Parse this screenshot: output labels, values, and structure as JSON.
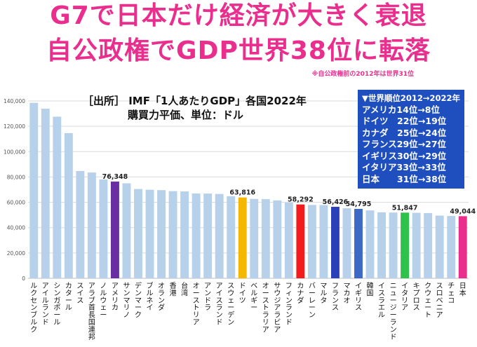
{
  "headline": {
    "line1": "G7で日本だけ経済が大きく衰退",
    "line2": "自公政権でGDP世界38位に転落",
    "footnote": "※自公政権前の2012年は世界31位"
  },
  "source": {
    "line1": "［出所］ IMF「1人あたりGDP」各国2022年",
    "line2": "購買力平価、単位：ドル"
  },
  "rank_box": {
    "title": "▼世界順位2012→2022年",
    "rows": [
      "アメリカ14位→8位",
      "ドイツ　22位→19位",
      "カナダ　25位→24位",
      "フランス29位→27位",
      "イギリス30位→29位",
      "イタリア33位→33位",
      "日本　　31位→38位"
    ]
  },
  "colors": {
    "default_bar": "#b8d1ea",
    "usa": "#6a2ea3",
    "germany": "#f5b800",
    "canada": "#f21c1c",
    "france": "#2b3fb8",
    "uk": "#3b69c5",
    "italy": "#2fc24a",
    "japan": "#ea2e8e"
  },
  "chart_data": {
    "type": "bar",
    "title": "IMF「1人あたりGDP」各国2022年",
    "ylabel": "",
    "xlabel": "",
    "ylim": [
      0,
      140000
    ],
    "yticks": [
      "0",
      "20,000",
      "40,000",
      "60,000",
      "80,000",
      "100,000",
      "120,000",
      "140,000"
    ],
    "categories": [
      "ルクセンブルク",
      "アイルランド",
      "シンガポール",
      "カタール",
      "スイス",
      "アラブ首長国連邦",
      "ノルウェー",
      "アメリカ",
      "サンマリノ",
      "デンマーク",
      "ブルネイ",
      "オランダ",
      "香港",
      "台湾",
      "オーストリア",
      "アンドラ",
      "アイスランド",
      "スウェーデン",
      "ドイツ",
      "ベルギー",
      "オーストラリア",
      "サウジアラビア",
      "フィンランド",
      "カナダ",
      "バーレーン",
      "マルタ",
      "フランス",
      "マカオ",
      "イギリス",
      "韓国",
      "イスラエル",
      "ニュージーランド",
      "イタリア",
      "キプロス",
      "クウェート",
      "スロベニア",
      "チェコ",
      "日本"
    ],
    "values": [
      138500,
      133900,
      127600,
      114600,
      84700,
      83500,
      78000,
      76348,
      75000,
      70500,
      69900,
      69600,
      68800,
      68600,
      67000,
      66900,
      66600,
      64800,
      63816,
      62700,
      62500,
      61500,
      59800,
      58292,
      57900,
      57800,
      56426,
      55300,
      54795,
      53600,
      52100,
      51900,
      51847,
      51700,
      51500,
      49500,
      49200,
      49044
    ],
    "highlights": {
      "アメリカ": {
        "color_key": "usa",
        "label": "76,348"
      },
      "ドイツ": {
        "color_key": "germany",
        "label": "63,816"
      },
      "カナダ": {
        "color_key": "canada",
        "label": "58,292"
      },
      "フランス": {
        "color_key": "france",
        "label": "56,426"
      },
      "イギリス": {
        "color_key": "uk",
        "label": "54,795"
      },
      "イタリア": {
        "color_key": "italy",
        "label": "51,847"
      },
      "日本": {
        "color_key": "japan",
        "label": "49,044"
      }
    }
  }
}
